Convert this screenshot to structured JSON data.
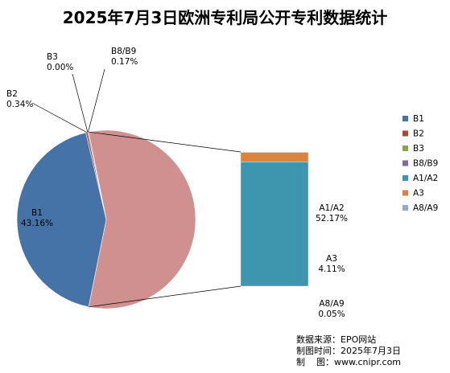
{
  "title": "2025年7月3日欧洲专利局公开专利数据统计",
  "chart_data": {
    "type": "pie",
    "title": "2025年7月3日欧洲专利局公开专利数据统计",
    "variant": "bar-of-pie",
    "slices": [
      {
        "name": "B1",
        "percent_label": "43.16%",
        "value": 43.16,
        "color": "#4673a7"
      },
      {
        "name": "B2",
        "percent_label": "0.34%",
        "value": 0.34,
        "color": "#aa4643"
      },
      {
        "name": "B3",
        "percent_label": "0.00%",
        "value": 0.0,
        "color": "#89a54e"
      },
      {
        "name": "B8/B9",
        "percent_label": "0.17%",
        "value": 0.17,
        "color": "#80699b"
      },
      {
        "name": "A1/A2",
        "percent_label": "52.17%",
        "value": 52.17,
        "color": "#3d96ae"
      },
      {
        "name": "A3",
        "percent_label": "4.11%",
        "value": 4.11,
        "color": "#db843d"
      },
      {
        "name": "A8/A9",
        "percent_label": "0.05%",
        "value": 0.05,
        "color": "#92a8cd"
      }
    ],
    "pie_slices": [
      "B1",
      "B2",
      "B3",
      "B8/B9"
    ],
    "bar_slices": [
      "A1/A2",
      "A3",
      "A8/A9"
    ],
    "combined_slice_color": "#d09090",
    "legend": [
      "B1",
      "B2",
      "B3",
      "B8/B9",
      "A1/A2",
      "A3",
      "A8/A9"
    ],
    "legend_position": "right"
  },
  "source": {
    "line1": "数据来源：EPO网站",
    "line2": "制图时间：2025年7月3日",
    "line3": "制    图：www.cnipr.com"
  }
}
